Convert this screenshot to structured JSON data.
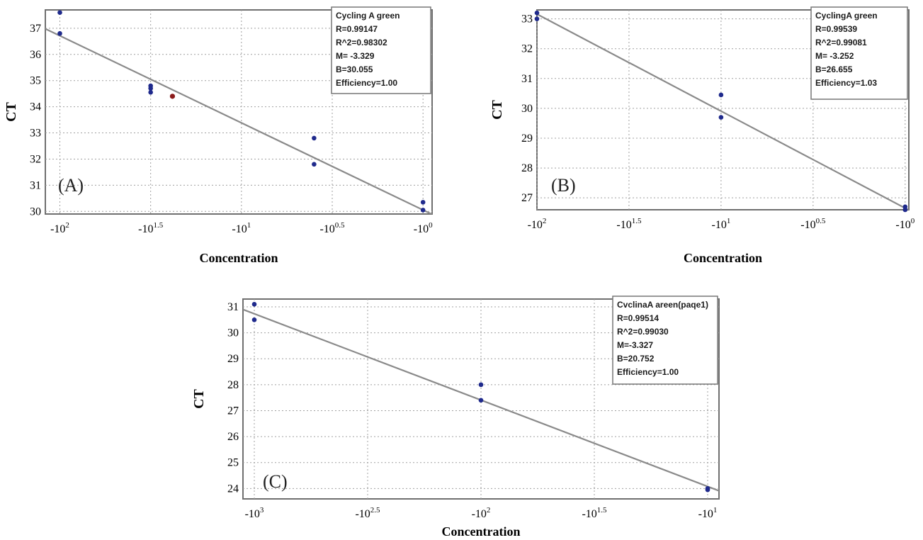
{
  "chart_data": [
    {
      "id": "A",
      "type": "scatter",
      "panel_label": "(A)",
      "xlabel": "Concentration",
      "ylabel": "CT",
      "xlim": [
        -2.08,
        0.05
      ],
      "ylim": [
        29.9,
        37.7
      ],
      "x_ticks": [
        {
          "value": -2,
          "base": "-10",
          "exp": "2"
        },
        {
          "value": -1.5,
          "base": "-10",
          "exp": "1.5"
        },
        {
          "value": -1,
          "base": "-10",
          "exp": "1"
        },
        {
          "value": -0.5,
          "base": "-10",
          "exp": "0.5"
        },
        {
          "value": 0,
          "base": "-10",
          "exp": "0"
        }
      ],
      "y_ticks": [
        30,
        31,
        32,
        33,
        34,
        35,
        36,
        37
      ],
      "grid": true,
      "series": [
        {
          "color": "#1f2a8c",
          "x": [
            -2.0,
            -2.0,
            -1.5,
            -1.5,
            -1.5,
            -1.38,
            -0.6,
            -0.6,
            0.0,
            0.0
          ],
          "y": [
            37.6,
            36.8,
            34.8,
            34.55,
            34.7,
            34.4,
            32.8,
            31.8,
            30.35,
            30.05
          ]
        }
      ],
      "highlight_point": {
        "x": -1.38,
        "y": 34.4,
        "color": "#8b1a1a"
      },
      "fit_line": {
        "slope": -3.329,
        "intercept": 30.055,
        "color": "#8a8a8a"
      },
      "legend": {
        "position": "top-right",
        "lines": [
          "Cycling A green",
          "R=0.99147",
          "R^2=0.98302",
          "M= -3.329",
          "B=30.055",
          "Efficiency=1.00"
        ]
      }
    },
    {
      "id": "B",
      "type": "scatter",
      "panel_label": "(B)",
      "xlabel": "Concentration",
      "ylabel": "CT",
      "xlim": [
        -2.0,
        0.02
      ],
      "ylim": [
        26.6,
        33.3
      ],
      "x_ticks": [
        {
          "value": -2,
          "base": "-10",
          "exp": "2"
        },
        {
          "value": -1.5,
          "base": "-10",
          "exp": "1.5"
        },
        {
          "value": -1,
          "base": "-10",
          "exp": "1"
        },
        {
          "value": -0.5,
          "base": "-10",
          "exp": "0.5"
        },
        {
          "value": 0,
          "base": "-10",
          "exp": "0"
        }
      ],
      "y_ticks": [
        27,
        28,
        29,
        30,
        31,
        32,
        33
      ],
      "grid": true,
      "series": [
        {
          "color": "#1f2a8c",
          "x": [
            -2.0,
            -2.0,
            -1.0,
            -1.0,
            0.0,
            0.0
          ],
          "y": [
            33.2,
            33.0,
            30.45,
            29.7,
            26.7,
            26.6
          ]
        }
      ],
      "fit_line": {
        "slope": -3.252,
        "intercept": 26.655,
        "color": "#8a8a8a"
      },
      "legend": {
        "position": "top-right",
        "lines": [
          "CyclingA green",
          "R=0.99539",
          "R^2=0.99081",
          "M= -3.252",
          "B=26.655",
          "Efficiency=1.03"
        ]
      }
    },
    {
      "id": "C",
      "type": "scatter",
      "panel_label": "(C)",
      "xlabel": "Concentration",
      "ylabel": "CT",
      "xlim": [
        -3.05,
        -0.95
      ],
      "ylim": [
        23.6,
        31.3
      ],
      "x_ticks": [
        {
          "value": -3,
          "base": "-10",
          "exp": "3"
        },
        {
          "value": -2.5,
          "base": "-10",
          "exp": "2.5"
        },
        {
          "value": -2,
          "base": "-10",
          "exp": "2"
        },
        {
          "value": -1.5,
          "base": "-10",
          "exp": "1.5"
        },
        {
          "value": -1,
          "base": "-10",
          "exp": "1"
        }
      ],
      "y_ticks": [
        24,
        25,
        26,
        27,
        28,
        29,
        30,
        31
      ],
      "grid": true,
      "series": [
        {
          "color": "#1f2a8c",
          "x": [
            -3.0,
            -3.0,
            -2.0,
            -2.0,
            -1.0,
            -1.0
          ],
          "y": [
            31.1,
            30.5,
            28.0,
            27.4,
            24.0,
            23.95
          ]
        }
      ],
      "fit_line": {
        "slope": -3.327,
        "intercept": 20.752,
        "color": "#8a8a8a"
      },
      "legend": {
        "position": "top-right",
        "lines": [
          "CvclinaA areen(paqe1)",
          "R=0.99514",
          "R^2=0.99030",
          "M=-3.327",
          "B=20.752",
          "Efficiency=1.00"
        ]
      }
    }
  ]
}
